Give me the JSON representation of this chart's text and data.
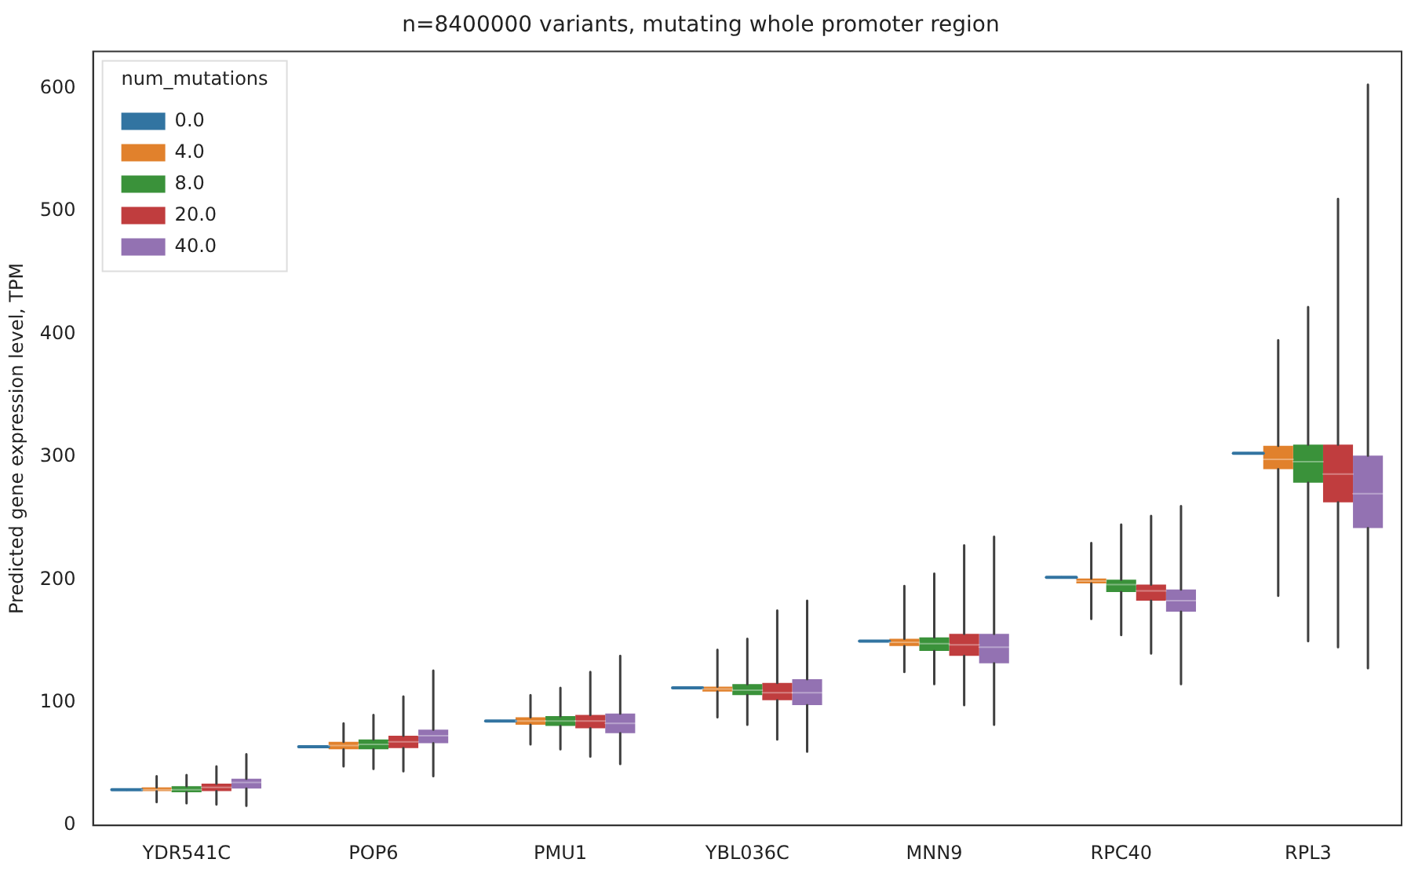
{
  "chart_data": {
    "type": "box",
    "title": "n=8400000 variants, mutating whole promoter region",
    "ylabel": "Predicted gene expression level, TPM",
    "legend_title": "num_mutations",
    "legend": "top left",
    "grid": false,
    "categories": [
      "YDR541C",
      "POP6",
      "PMU1",
      "YBL036C",
      "MNN9",
      "RPC40",
      "RPL3"
    ],
    "ylim": [
      0,
      630
    ],
    "yticks": [
      0,
      100,
      200,
      300,
      400,
      500,
      600
    ],
    "series": [
      {
        "name": "0.0",
        "color": "#3274a1",
        "boxes": [
          {
            "low": 29,
            "q1": 29,
            "median": 29,
            "q3": 29,
            "high": 29
          },
          {
            "low": 64,
            "q1": 64,
            "median": 64,
            "q3": 64,
            "high": 64
          },
          {
            "low": 85,
            "q1": 85,
            "median": 85,
            "q3": 85,
            "high": 85
          },
          {
            "low": 112,
            "q1": 112,
            "median": 112,
            "q3": 112,
            "high": 112
          },
          {
            "low": 150,
            "q1": 150,
            "median": 150,
            "q3": 150,
            "high": 150
          },
          {
            "low": 202,
            "q1": 202,
            "median": 202,
            "q3": 202,
            "high": 202
          },
          {
            "low": 303,
            "q1": 303,
            "median": 303,
            "q3": 303,
            "high": 303
          }
        ]
      },
      {
        "name": "4.0",
        "color": "#e1812c",
        "boxes": [
          {
            "low": 19,
            "q1": 28,
            "median": 29,
            "q3": 31,
            "high": 40
          },
          {
            "low": 48,
            "q1": 62,
            "median": 65,
            "q3": 68,
            "high": 83
          },
          {
            "low": 66,
            "q1": 82,
            "median": 85,
            "q3": 88,
            "high": 106
          },
          {
            "low": 88,
            "q1": 109,
            "median": 111,
            "q3": 113,
            "high": 143
          },
          {
            "low": 125,
            "q1": 146,
            "median": 149,
            "q3": 152,
            "high": 195
          },
          {
            "low": 168,
            "q1": 197,
            "median": 199,
            "q3": 201,
            "high": 230
          },
          {
            "low": 187,
            "q1": 290,
            "median": 298,
            "q3": 309,
            "high": 395
          }
        ]
      },
      {
        "name": "8.0",
        "color": "#3a923a",
        "boxes": [
          {
            "low": 18,
            "q1": 27,
            "median": 29,
            "q3": 32,
            "high": 41
          },
          {
            "low": 46,
            "q1": 62,
            "median": 66,
            "q3": 70,
            "high": 90
          },
          {
            "low": 62,
            "q1": 81,
            "median": 85,
            "q3": 89,
            "high": 112
          },
          {
            "low": 82,
            "q1": 106,
            "median": 110,
            "q3": 115,
            "high": 152
          },
          {
            "low": 115,
            "q1": 142,
            "median": 148,
            "q3": 153,
            "high": 205
          },
          {
            "low": 155,
            "q1": 190,
            "median": 196,
            "q3": 200,
            "high": 245
          },
          {
            "low": 150,
            "q1": 279,
            "median": 296,
            "q3": 310,
            "high": 422
          }
        ]
      },
      {
        "name": "20.0",
        "color": "#c03d3e",
        "boxes": [
          {
            "low": 17,
            "q1": 28,
            "median": 31,
            "q3": 34,
            "high": 48
          },
          {
            "low": 44,
            "q1": 63,
            "median": 68,
            "q3": 73,
            "high": 105
          },
          {
            "low": 56,
            "q1": 79,
            "median": 85,
            "q3": 90,
            "high": 125
          },
          {
            "low": 70,
            "q1": 102,
            "median": 108,
            "q3": 116,
            "high": 175
          },
          {
            "low": 98,
            "q1": 138,
            "median": 147,
            "q3": 156,
            "high": 228
          },
          {
            "low": 140,
            "q1": 183,
            "median": 191,
            "q3": 196,
            "high": 252
          },
          {
            "low": 145,
            "q1": 263,
            "median": 286,
            "q3": 310,
            "high": 510
          }
        ]
      },
      {
        "name": "40.0",
        "color": "#9372b2",
        "boxes": [
          {
            "low": 16,
            "q1": 30,
            "median": 35,
            "q3": 38,
            "high": 58
          },
          {
            "low": 40,
            "q1": 67,
            "median": 73,
            "q3": 78,
            "high": 126
          },
          {
            "low": 50,
            "q1": 75,
            "median": 83,
            "q3": 91,
            "high": 138
          },
          {
            "low": 60,
            "q1": 98,
            "median": 108,
            "q3": 119,
            "high": 183
          },
          {
            "low": 82,
            "q1": 132,
            "median": 145,
            "q3": 156,
            "high": 235
          },
          {
            "low": 115,
            "q1": 174,
            "median": 183,
            "q3": 192,
            "high": 260
          },
          {
            "low": 128,
            "q1": 242,
            "median": 270,
            "q3": 301,
            "high": 603
          }
        ]
      }
    ]
  }
}
